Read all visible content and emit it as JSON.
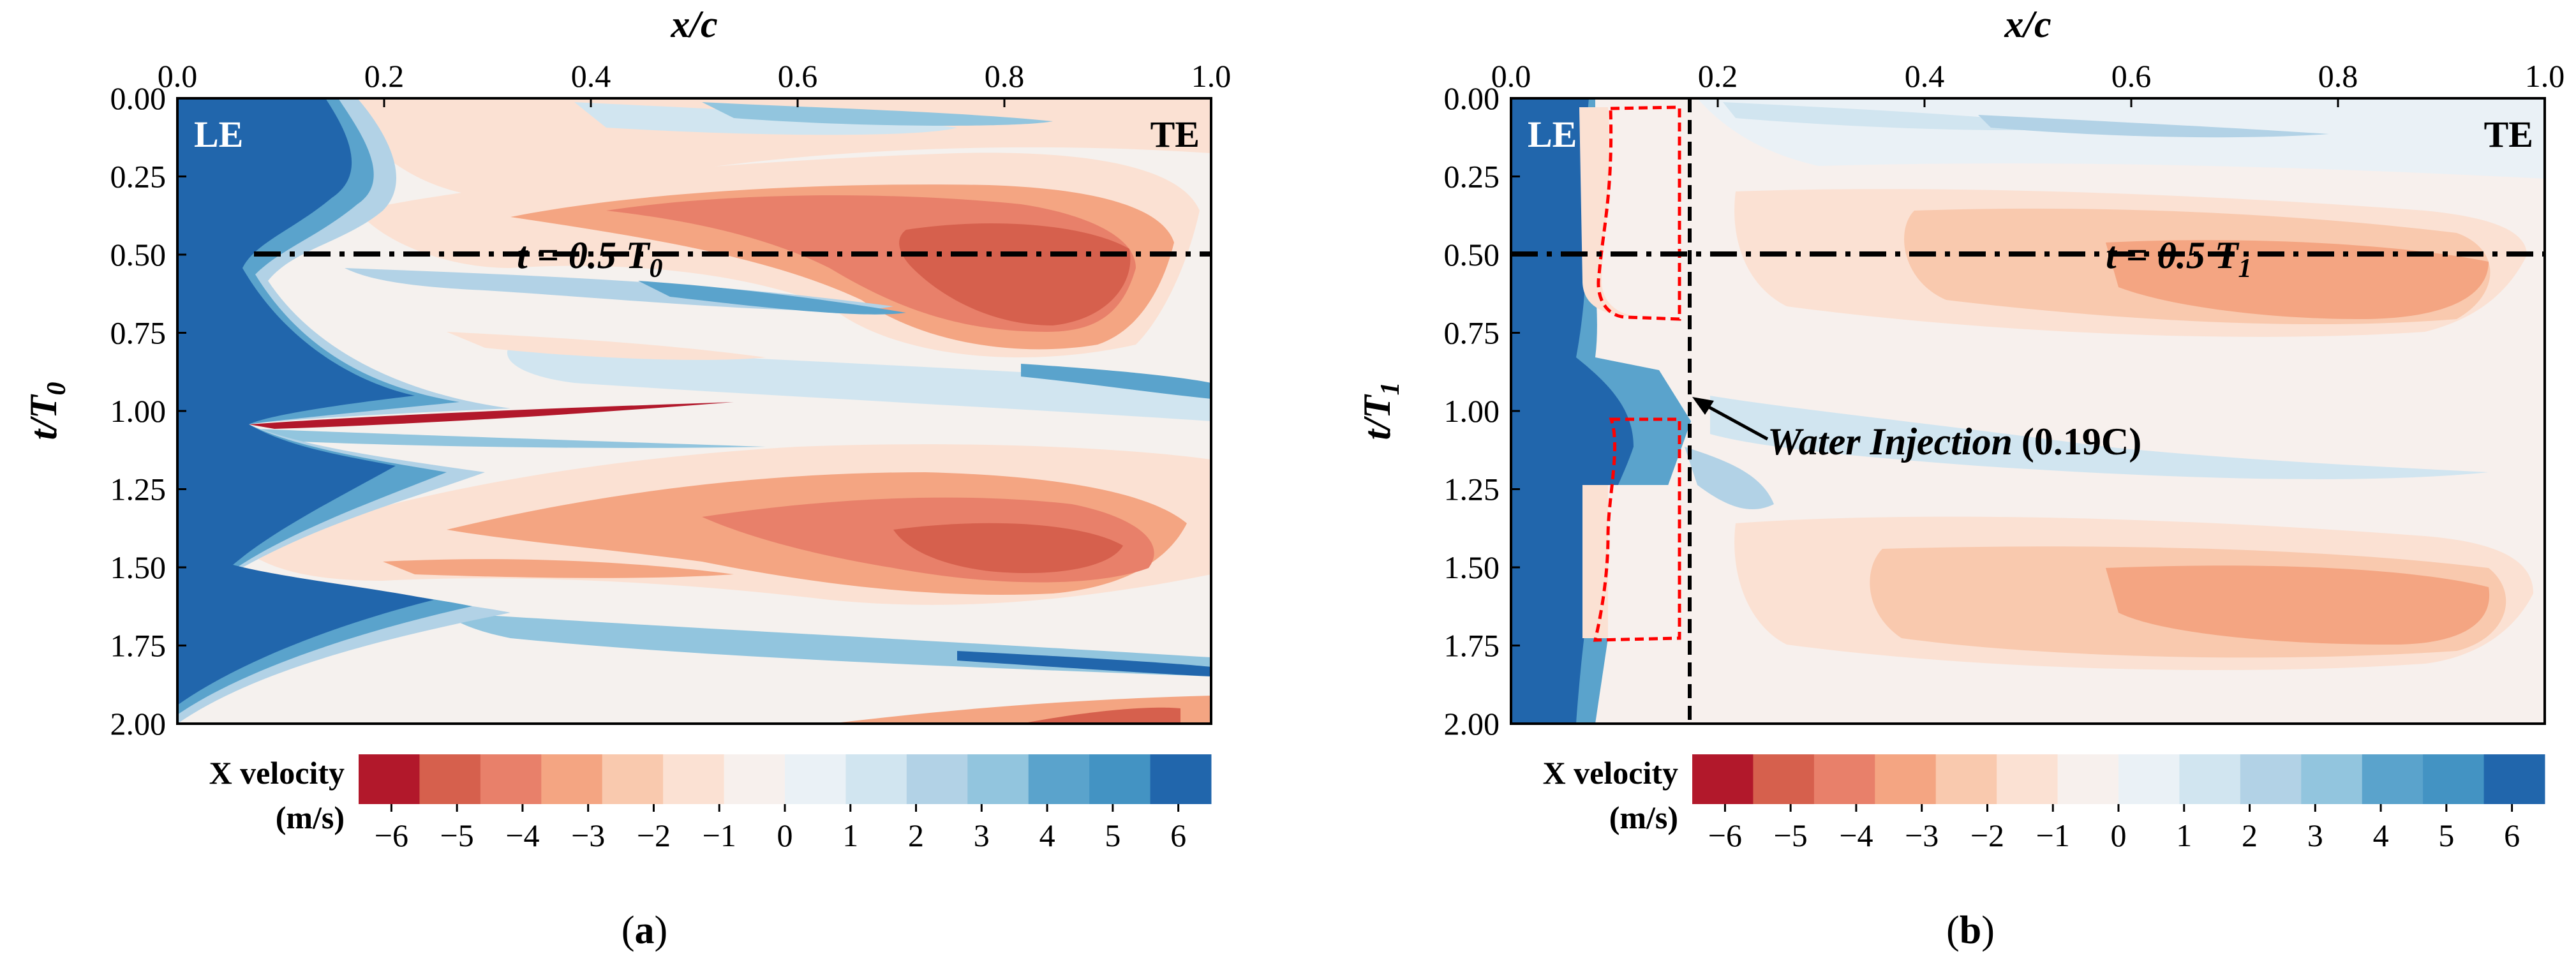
{
  "colors": {
    "scale": [
      "#b2182b",
      "#d6604d",
      "#e8806a",
      "#f4a582",
      "#f9c9ae",
      "#fbe1d3",
      "#f7f0ed",
      "#eaf1f6",
      "#d1e5f0",
      "#b2d2e6",
      "#92c5de",
      "#5aa3cc",
      "#4393c3",
      "#2166ac"
    ],
    "injection_outline": "#ff0000",
    "reference_line": "#000000",
    "background_flow": "#f5f1ee"
  },
  "chart_data": [
    {
      "type": "heatmap",
      "panel": "a",
      "xlabel_main": "x/c",
      "ylabel_main": "t/T",
      "ylabel_sub": "0",
      "x_ticks": [
        "0.0",
        "0.2",
        "0.4",
        "0.6",
        "0.8",
        "1.0"
      ],
      "y_ticks": [
        "0.00",
        "0.25",
        "0.50",
        "0.75",
        "1.00",
        "1.25",
        "1.50",
        "1.75",
        "2.00"
      ],
      "xlim": [
        0,
        1
      ],
      "ylim": [
        0,
        2
      ],
      "corner_left": "LE",
      "corner_right": "TE",
      "reference_line": {
        "t": 0.5,
        "label_main": "t = 0.5 T",
        "label_sub": "0"
      },
      "colorbar": {
        "title_line1": "X velocity",
        "title_line2": "(m/s)",
        "ticks": [
          "−6",
          "−5",
          "−4",
          "−3",
          "−2",
          "−1",
          "0",
          "1",
          "2",
          "3",
          "4",
          "5",
          "6"
        ],
        "range": [
          -6.5,
          6.5
        ]
      },
      "panel_label_open": "(",
      "panel_label_letter": "a",
      "panel_label_close": ")"
    },
    {
      "type": "heatmap",
      "panel": "b",
      "xlabel_main": "x/c",
      "ylabel_main": "t/T",
      "ylabel_sub": "1",
      "x_ticks": [
        "0.0",
        "0.2",
        "0.4",
        "0.6",
        "0.8",
        "1.0"
      ],
      "y_ticks": [
        "0.00",
        "0.25",
        "0.50",
        "0.75",
        "1.00",
        "1.25",
        "1.50",
        "1.75",
        "2.00"
      ],
      "xlim": [
        0,
        1
      ],
      "ylim": [
        0,
        2
      ],
      "corner_left": "LE",
      "corner_right": "TE",
      "reference_line": {
        "t": 0.5,
        "label_main": "t = 0.5 T",
        "label_sub": "1"
      },
      "injection": {
        "x_over_c": 0.19,
        "label_main": "Water Injection",
        "label_value": "(0.19C)"
      },
      "colorbar": {
        "title_line1": "X velocity",
        "title_line2": "(m/s)",
        "ticks": [
          "−6",
          "−5",
          "−4",
          "−3",
          "−2",
          "−1",
          "0",
          "1",
          "2",
          "3",
          "4",
          "5",
          "6"
        ],
        "range": [
          -6.5,
          6.5
        ]
      },
      "panel_label_open": "(",
      "panel_label_letter": "b",
      "panel_label_close": ")"
    }
  ]
}
